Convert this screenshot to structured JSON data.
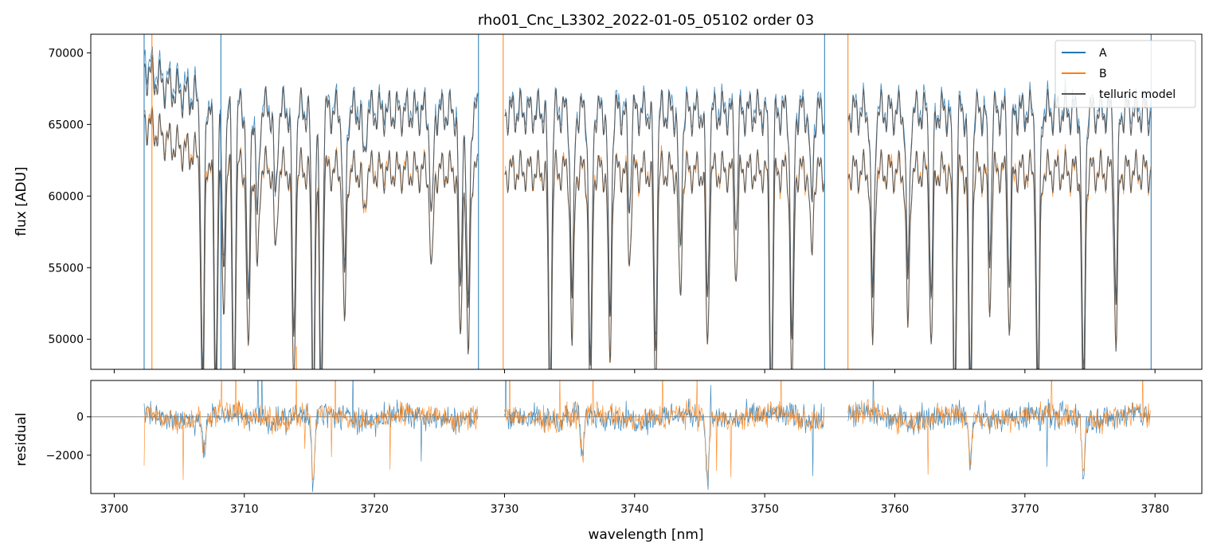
{
  "chart_data": {
    "type": "line",
    "title": "rho01_Cnc_L3302_2022-01-05_05102  order 03",
    "xlabel": "wavelength [nm]",
    "xlim": [
      3698.2,
      3783.6
    ],
    "x_ticks": [
      3700,
      3710,
      3720,
      3730,
      3740,
      3750,
      3760,
      3770,
      3780
    ],
    "x_tick_labels": [
      "3700",
      "3710",
      "3720",
      "3730",
      "3740",
      "3750",
      "3760",
      "3770",
      "3780"
    ],
    "legend": {
      "placement": "top-right",
      "entries": [
        "A",
        "B",
        "telluric model"
      ]
    },
    "colors": {
      "A": "#1f77b4",
      "B": "#ff7f0e",
      "model": "#555555"
    },
    "panels": [
      {
        "name": "flux",
        "ylabel": "flux [ADU]",
        "ylim": [
          47900,
          71300
        ],
        "y_ticks": [
          50000,
          55000,
          60000,
          65000,
          70000
        ],
        "y_tick_labels": [
          "50000",
          "55000",
          "60000",
          "65000",
          "70000"
        ],
        "series_A": {
          "name": "A",
          "x_range": [
            3702.3,
            3779.7
          ],
          "continuum_start": 71300,
          "continuum_level": 67800,
          "step": 0.08
        },
        "series_B": {
          "name": "B",
          "x_range": [
            3702.3,
            3779.7
          ],
          "continuum_start": 67200,
          "continuum_level": 63300,
          "step": 0.08
        },
        "series_model": {
          "name": "telluric model",
          "x_range": [
            3702.3,
            3779.7
          ],
          "gaps": [
            [
              3728.0,
              3730.0
            ],
            [
              3754.6,
              3756.4
            ]
          ]
        },
        "absorption_lines": [
          [
            3706.8,
            0.3
          ],
          [
            3707.8,
            0.3
          ],
          [
            3708.4,
            0.18
          ],
          [
            3709.2,
            0.3
          ],
          [
            3710.3,
            0.22
          ],
          [
            3711.0,
            0.12
          ],
          [
            3712.4,
            0.1
          ],
          [
            3713.8,
            0.25
          ],
          [
            3715.3,
            0.3
          ],
          [
            3715.9,
            0.3
          ],
          [
            3717.7,
            0.18
          ],
          [
            3719.2,
            0.05
          ],
          [
            3724.4,
            0.12
          ],
          [
            3726.6,
            0.2
          ],
          [
            3727.2,
            0.22
          ],
          [
            3733.5,
            0.3
          ],
          [
            3735.2,
            0.2
          ],
          [
            3736.6,
            0.28
          ],
          [
            3738.1,
            0.22
          ],
          [
            3739.6,
            0.1
          ],
          [
            3741.6,
            0.25
          ],
          [
            3743.5,
            0.15
          ],
          [
            3745.6,
            0.2
          ],
          [
            3747.8,
            0.12
          ],
          [
            3750.5,
            0.3
          ],
          [
            3752.1,
            0.25
          ],
          [
            3753.6,
            0.1
          ],
          [
            3758.3,
            0.2
          ],
          [
            3761.0,
            0.18
          ],
          [
            3762.8,
            0.2
          ],
          [
            3764.6,
            0.3
          ],
          [
            3765.8,
            0.3
          ],
          [
            3767.3,
            0.15
          ],
          [
            3768.8,
            0.18
          ],
          [
            3771.0,
            0.3
          ],
          [
            3774.5,
            0.3
          ],
          [
            3777.0,
            0.2
          ]
        ],
        "spikes": [
          [
            3702.3,
            71300
          ],
          [
            3702.9,
            71300
          ],
          [
            3708.2,
            71300
          ],
          [
            3714.0,
            49500
          ],
          [
            3728.0,
            71300
          ],
          [
            3729.9,
            71300
          ],
          [
            3754.6,
            71300
          ],
          [
            3756.4,
            71300
          ],
          [
            3779.7,
            71300
          ]
        ]
      },
      {
        "name": "residual",
        "ylabel": "residual",
        "ylim": [
          -4000,
          1900
        ],
        "y_ticks": [
          -2000,
          0
        ],
        "y_tick_labels": [
          "−2000",
          "0"
        ],
        "zero_line": 0,
        "noise_amplitude": 500,
        "dips": [
          [
            3715.3,
            -3500
          ],
          [
            3745.6,
            -3200
          ],
          [
            3765.8,
            -2600
          ],
          [
            3774.5,
            -2800
          ],
          [
            3736.0,
            -2400
          ],
          [
            3706.9,
            -2100
          ]
        ]
      }
    ]
  }
}
